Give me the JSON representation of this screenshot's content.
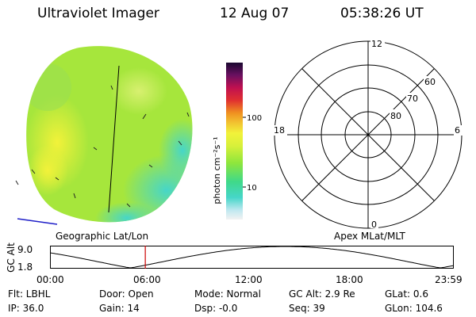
{
  "header": {
    "instrument": "Ultraviolet Imager",
    "date": "12 Aug 07",
    "time": "05:38:26 UT"
  },
  "colorbar": {
    "unit": "photon cm⁻²s⁻¹",
    "ticks": [
      "100",
      "10"
    ],
    "scale": "log"
  },
  "polar_grid": {
    "mlt_labels": [
      "12",
      "18",
      "6",
      "0"
    ],
    "lat_labels": [
      "60",
      "70",
      "80"
    ]
  },
  "coord_labels": {
    "left": "Geographic Lat/Lon",
    "right": "Apex MLat/MLT"
  },
  "altitude_plot": {
    "axis_label": "GC Alt",
    "y_ticks": [
      "9.0",
      "1.8"
    ],
    "x_ticks": [
      "00:00",
      "06:00",
      "12:00",
      "18:00",
      "23:59"
    ],
    "current_time_hours": 5.64
  },
  "status": {
    "flt": "Flt: LBHL",
    "door": "Door: Open",
    "mode": "Mode: Normal",
    "gc_alt": "GC Alt: 2.9 Re",
    "glat": "GLat:  0.6",
    "ip": "IP: 36.0",
    "gain": "Gain: 14",
    "dsp": "Dsp:  -0.0",
    "seq": "Seq: 39",
    "glon": "GLon: 104.6"
  },
  "colors": {
    "image_green": "#a6e63c",
    "image_yellow": "#f2f23a",
    "image_cyan": "#46d6c9",
    "time_marker": "#cc0000"
  }
}
